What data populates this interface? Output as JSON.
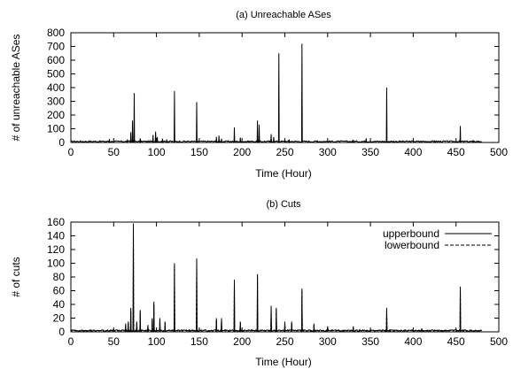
{
  "chart_data": [
    {
      "type": "line",
      "title": "(a) Unreachable ASes",
      "xlabel": "Time (Hour)",
      "ylabel": "# of unreachable ASes",
      "xlim": [
        0,
        500
      ],
      "ylim": [
        0,
        800
      ],
      "xticks": [
        "0",
        "50",
        "100",
        "150",
        "200",
        "250",
        "300",
        "350",
        "400",
        "450",
        "500"
      ],
      "yticks": [
        "0",
        "100",
        "200",
        "300",
        "400",
        "500",
        "600",
        "700",
        "800"
      ],
      "grid": false,
      "baseline": 3,
      "series": [
        {
          "peaks": [
            [
              45,
              25
            ],
            [
              66,
              22
            ],
            [
              70,
              75
            ],
            [
              72,
              160
            ],
            [
              74,
              360
            ],
            [
              81,
              30
            ],
            [
              96,
              55
            ],
            [
              99,
              80
            ],
            [
              101,
              40
            ],
            [
              107,
              28
            ],
            [
              112,
              22
            ],
            [
              121,
              375
            ],
            [
              147,
              295
            ],
            [
              170,
              40
            ],
            [
              173,
              50
            ],
            [
              176,
              28
            ],
            [
              191,
              110
            ],
            [
              198,
              35
            ],
            [
              218,
              160
            ],
            [
              220,
              130
            ],
            [
              234,
              60
            ],
            [
              237,
              40
            ],
            [
              243,
              650
            ],
            [
              255,
              22
            ],
            [
              270,
              720
            ],
            [
              288,
              15
            ],
            [
              330,
              20
            ],
            [
              345,
              30
            ],
            [
              369,
              400
            ],
            [
              425,
              15
            ],
            [
              455,
              120
            ],
            [
              470,
              10
            ]
          ]
        }
      ]
    },
    {
      "type": "line",
      "title": "(b) Cuts",
      "xlabel": "Time (Hour)",
      "ylabel": "# of cuts",
      "xlim": [
        0,
        500
      ],
      "ylim": [
        0,
        160
      ],
      "xticks": [
        "0",
        "50",
        "100",
        "150",
        "200",
        "250",
        "300",
        "350",
        "400",
        "450",
        "500"
      ],
      "yticks": [
        "0",
        "20",
        "40",
        "60",
        "80",
        "100",
        "120",
        "140",
        "160"
      ],
      "grid": false,
      "legend": "top-right",
      "baseline": 1,
      "series": [
        {
          "name": "upperbound",
          "style": "solid",
          "peaks": [
            [
              64,
              12
            ],
            [
              67,
              15
            ],
            [
              70,
              35
            ],
            [
              73,
              158
            ],
            [
              77,
              15
            ],
            [
              81,
              32
            ],
            [
              90,
              10
            ],
            [
              95,
              20
            ],
            [
              97,
              44
            ],
            [
              104,
              20
            ],
            [
              110,
              15
            ],
            [
              121,
              100
            ],
            [
              147,
              107
            ],
            [
              170,
              20
            ],
            [
              176,
              20
            ],
            [
              191,
              76
            ],
            [
              198,
              15
            ],
            [
              218,
              84
            ],
            [
              234,
              38
            ],
            [
              240,
              35
            ],
            [
              250,
              15
            ],
            [
              258,
              15
            ],
            [
              270,
              63
            ],
            [
              284,
              12
            ],
            [
              300,
              8
            ],
            [
              330,
              8
            ],
            [
              369,
              35
            ],
            [
              410,
              5
            ],
            [
              455,
              66
            ]
          ]
        },
        {
          "name": "lowerbound",
          "style": "dashed",
          "peaks": [
            [
              64,
              10
            ],
            [
              67,
              13
            ],
            [
              70,
              30
            ],
            [
              73,
              150
            ],
            [
              77,
              13
            ],
            [
              81,
              28
            ],
            [
              90,
              8
            ],
            [
              95,
              18
            ],
            [
              97,
              40
            ],
            [
              104,
              18
            ],
            [
              110,
              13
            ],
            [
              121,
              96
            ],
            [
              147,
              104
            ],
            [
              170,
              18
            ],
            [
              176,
              18
            ],
            [
              191,
              72
            ],
            [
              198,
              13
            ],
            [
              218,
              80
            ],
            [
              234,
              34
            ],
            [
              240,
              32
            ],
            [
              250,
              13
            ],
            [
              258,
              13
            ],
            [
              270,
              60
            ],
            [
              284,
              10
            ],
            [
              300,
              6
            ],
            [
              330,
              6
            ],
            [
              369,
              32
            ],
            [
              410,
              4
            ],
            [
              455,
              63
            ]
          ]
        }
      ]
    }
  ]
}
